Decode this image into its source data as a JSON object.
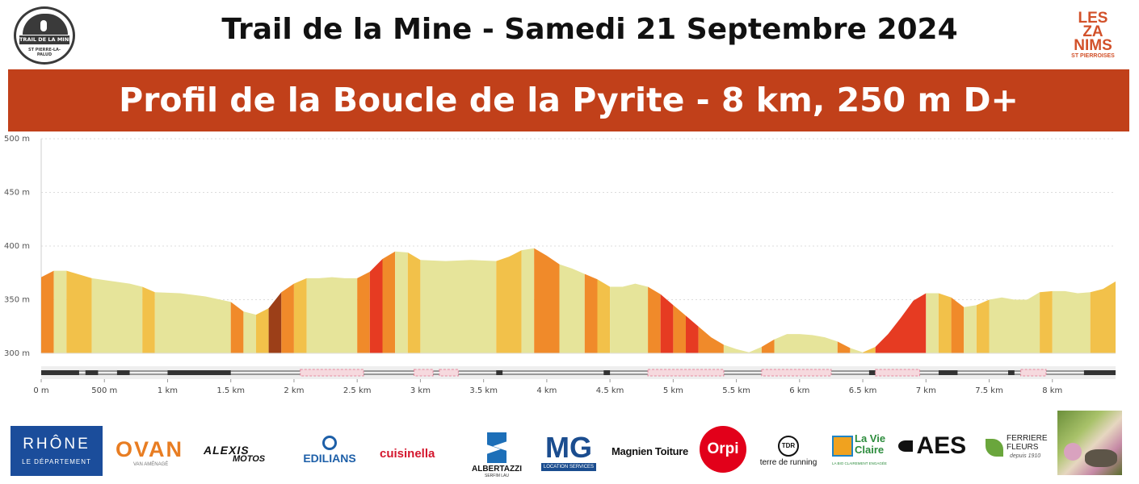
{
  "header": {
    "title": "Trail de la Mine - Samedi 21 Septembre 2024",
    "logo_left": {
      "band": "TRAIL DE LA MINE",
      "sub": "ST PIERRE-LA-PALUD"
    },
    "logo_right": {
      "lines": [
        "LES",
        "ZA",
        "NIMS"
      ],
      "sub": "ST PIERROISES"
    }
  },
  "banner": {
    "title": "Profil de la Boucle de la Pyrite - 8 km, 250 m D+"
  },
  "chart_data": {
    "type": "area",
    "xlim": [
      0,
      8500
    ],
    "ylim": [
      300,
      500
    ],
    "y_ticks": [
      {
        "value": 300,
        "label": "300 m"
      },
      {
        "value": 350,
        "label": "350 m"
      },
      {
        "value": 400,
        "label": "400 m"
      },
      {
        "value": 450,
        "label": "450 m"
      },
      {
        "value": 500,
        "label": "500 m"
      }
    ],
    "x_ticks": [
      {
        "value": 0,
        "label": "0 m"
      },
      {
        "value": 500,
        "label": "500 m"
      },
      {
        "value": 1000,
        "label": "1 km"
      },
      {
        "value": 1500,
        "label": "1.5 km"
      },
      {
        "value": 2000,
        "label": "2 km"
      },
      {
        "value": 2500,
        "label": "2.5 km"
      },
      {
        "value": 3000,
        "label": "3 km"
      },
      {
        "value": 3500,
        "label": "3.5 km"
      },
      {
        "value": 4000,
        "label": "4 km"
      },
      {
        "value": 4500,
        "label": "4.5 km"
      },
      {
        "value": 5000,
        "label": "5 km"
      },
      {
        "value": 5500,
        "label": "5.5 km"
      },
      {
        "value": 6000,
        "label": "6 km"
      },
      {
        "value": 6500,
        "label": "6.5 km"
      },
      {
        "value": 7000,
        "label": "7 km"
      },
      {
        "value": 7500,
        "label": "7.5 km"
      },
      {
        "value": 8000,
        "label": "8 km"
      }
    ],
    "grid": true,
    "colors": {
      "flat": "#e6e49a",
      "mild": "#f2c14a",
      "medium": "#f08a2a",
      "steep": "#e63b22",
      "very_steep": "#9c3f18"
    },
    "x": [
      0,
      100,
      200,
      400,
      700,
      800,
      900,
      1100,
      1300,
      1500,
      1600,
      1700,
      1800,
      1900,
      2000,
      2100,
      2200,
      2300,
      2400,
      2500,
      2600,
      2700,
      2800,
      2900,
      3000,
      3200,
      3400,
      3600,
      3700,
      3800,
      3900,
      4000,
      4100,
      4200,
      4300,
      4400,
      4500,
      4600,
      4700,
      4800,
      4900,
      5000,
      5100,
      5200,
      5300,
      5400,
      5500,
      5600,
      5700,
      5800,
      5900,
      6000,
      6100,
      6200,
      6300,
      6400,
      6500,
      6600,
      6700,
      6800,
      6900,
      7000,
      7100,
      7200,
      7300,
      7400,
      7500,
      7600,
      7700,
      7800,
      7900,
      8000,
      8100,
      8200,
      8300,
      8400,
      8500
    ],
    "y": [
      371,
      377,
      377,
      370,
      365,
      362,
      357,
      356,
      353,
      348,
      339,
      336,
      342,
      357,
      365,
      370,
      370,
      371,
      370,
      370,
      376,
      388,
      395,
      394,
      387,
      386,
      387,
      386,
      390,
      396,
      398,
      391,
      383,
      379,
      374,
      369,
      362,
      362,
      365,
      362,
      355,
      345,
      335,
      325,
      315,
      308,
      304,
      301,
      306,
      313,
      318,
      318,
      317,
      315,
      311,
      305,
      301,
      306,
      318,
      333,
      349,
      356,
      356,
      352,
      343,
      345,
      350,
      352,
      350,
      350,
      357,
      358,
      358,
      356,
      357,
      360,
      367
    ],
    "segments": [
      {
        "from": 0,
        "to": 100,
        "cls": "medium"
      },
      {
        "from": 100,
        "to": 200,
        "cls": "flat"
      },
      {
        "from": 200,
        "to": 400,
        "cls": "mild"
      },
      {
        "from": 400,
        "to": 800,
        "cls": "flat"
      },
      {
        "from": 800,
        "to": 900,
        "cls": "mild"
      },
      {
        "from": 900,
        "to": 1500,
        "cls": "flat"
      },
      {
        "from": 1500,
        "to": 1600,
        "cls": "medium"
      },
      {
        "from": 1600,
        "to": 1700,
        "cls": "flat"
      },
      {
        "from": 1700,
        "to": 1800,
        "cls": "mild"
      },
      {
        "from": 1800,
        "to": 1900,
        "cls": "very_steep"
      },
      {
        "from": 1900,
        "to": 2000,
        "cls": "medium"
      },
      {
        "from": 2000,
        "to": 2100,
        "cls": "mild"
      },
      {
        "from": 2100,
        "to": 2500,
        "cls": "flat"
      },
      {
        "from": 2500,
        "to": 2600,
        "cls": "medium"
      },
      {
        "from": 2600,
        "to": 2700,
        "cls": "steep"
      },
      {
        "from": 2700,
        "to": 2800,
        "cls": "medium"
      },
      {
        "from": 2800,
        "to": 2900,
        "cls": "flat"
      },
      {
        "from": 2900,
        "to": 3000,
        "cls": "mild"
      },
      {
        "from": 3000,
        "to": 3600,
        "cls": "flat"
      },
      {
        "from": 3600,
        "to": 3800,
        "cls": "mild"
      },
      {
        "from": 3800,
        "to": 3900,
        "cls": "flat"
      },
      {
        "from": 3900,
        "to": 4100,
        "cls": "medium"
      },
      {
        "from": 4100,
        "to": 4300,
        "cls": "flat"
      },
      {
        "from": 4300,
        "to": 4400,
        "cls": "medium"
      },
      {
        "from": 4400,
        "to": 4500,
        "cls": "mild"
      },
      {
        "from": 4500,
        "to": 4800,
        "cls": "flat"
      },
      {
        "from": 4800,
        "to": 4900,
        "cls": "medium"
      },
      {
        "from": 4900,
        "to": 5000,
        "cls": "steep"
      },
      {
        "from": 5000,
        "to": 5100,
        "cls": "medium"
      },
      {
        "from": 5100,
        "to": 5200,
        "cls": "steep"
      },
      {
        "from": 5200,
        "to": 5400,
        "cls": "medium"
      },
      {
        "from": 5400,
        "to": 5700,
        "cls": "flat"
      },
      {
        "from": 5700,
        "to": 5800,
        "cls": "medium"
      },
      {
        "from": 5800,
        "to": 6300,
        "cls": "flat"
      },
      {
        "from": 6300,
        "to": 6400,
        "cls": "medium"
      },
      {
        "from": 6400,
        "to": 6500,
        "cls": "flat"
      },
      {
        "from": 6500,
        "to": 6600,
        "cls": "mild"
      },
      {
        "from": 6600,
        "to": 7000,
        "cls": "steep"
      },
      {
        "from": 7000,
        "to": 7100,
        "cls": "flat"
      },
      {
        "from": 7100,
        "to": 7200,
        "cls": "mild"
      },
      {
        "from": 7200,
        "to": 7300,
        "cls": "medium"
      },
      {
        "from": 7300,
        "to": 7400,
        "cls": "flat"
      },
      {
        "from": 7400,
        "to": 7500,
        "cls": "mild"
      },
      {
        "from": 7500,
        "to": 7900,
        "cls": "flat"
      },
      {
        "from": 7900,
        "to": 8000,
        "cls": "mild"
      },
      {
        "from": 8000,
        "to": 8300,
        "cls": "flat"
      },
      {
        "from": 8300,
        "to": 8500,
        "cls": "mild"
      }
    ],
    "surface_track": {
      "pink_ranges": [
        [
          2050,
          2550
        ],
        [
          2950,
          3100
        ],
        [
          3150,
          3300
        ],
        [
          4800,
          5400
        ],
        [
          5700,
          6250
        ],
        [
          6600,
          6950
        ],
        [
          7750,
          7950
        ]
      ],
      "dark_marks": [
        [
          0,
          300
        ],
        [
          350,
          450
        ],
        [
          600,
          700
        ],
        [
          1000,
          1500
        ],
        [
          3600,
          3650
        ],
        [
          4450,
          4500
        ],
        [
          6550,
          6600
        ],
        [
          7100,
          7250
        ],
        [
          7650,
          7700
        ],
        [
          8250,
          8500
        ]
      ]
    }
  },
  "sponsors": [
    {
      "name": "rhone",
      "line1": "RHÔNE",
      "line2": "LE DÉPARTEMENT"
    },
    {
      "name": "ovan",
      "line1": "OVAN",
      "line2": "VAN AMÉNAGÉ"
    },
    {
      "name": "alexis",
      "line1": "ALEXIS",
      "line2": "MOTOS"
    },
    {
      "name": "edilians",
      "line1": "EDILIANS"
    },
    {
      "name": "cuisinella",
      "line1": "cuisinella"
    },
    {
      "name": "albertazzi",
      "line1": "ALBERTAZZI",
      "line2": "SERFIM LAU"
    },
    {
      "name": "mg",
      "line1": "MG",
      "line2": "LOCATION SERVICES"
    },
    {
      "name": "magnien",
      "line1": "Magnien Toiture"
    },
    {
      "name": "orpi",
      "line1": "Orpi"
    },
    {
      "name": "terre",
      "line1": "TDR",
      "line2": "terre de running"
    },
    {
      "name": "lavie",
      "line1": "La Vie",
      "line2": "Claire",
      "line3": "LA BIO CLAIREMENT ENGAGÉE"
    },
    {
      "name": "aes",
      "line1": "AES"
    },
    {
      "name": "ferriere",
      "line1": "FERRIERE",
      "line2": "FLEURS",
      "line3": "depuis 1910"
    }
  ]
}
